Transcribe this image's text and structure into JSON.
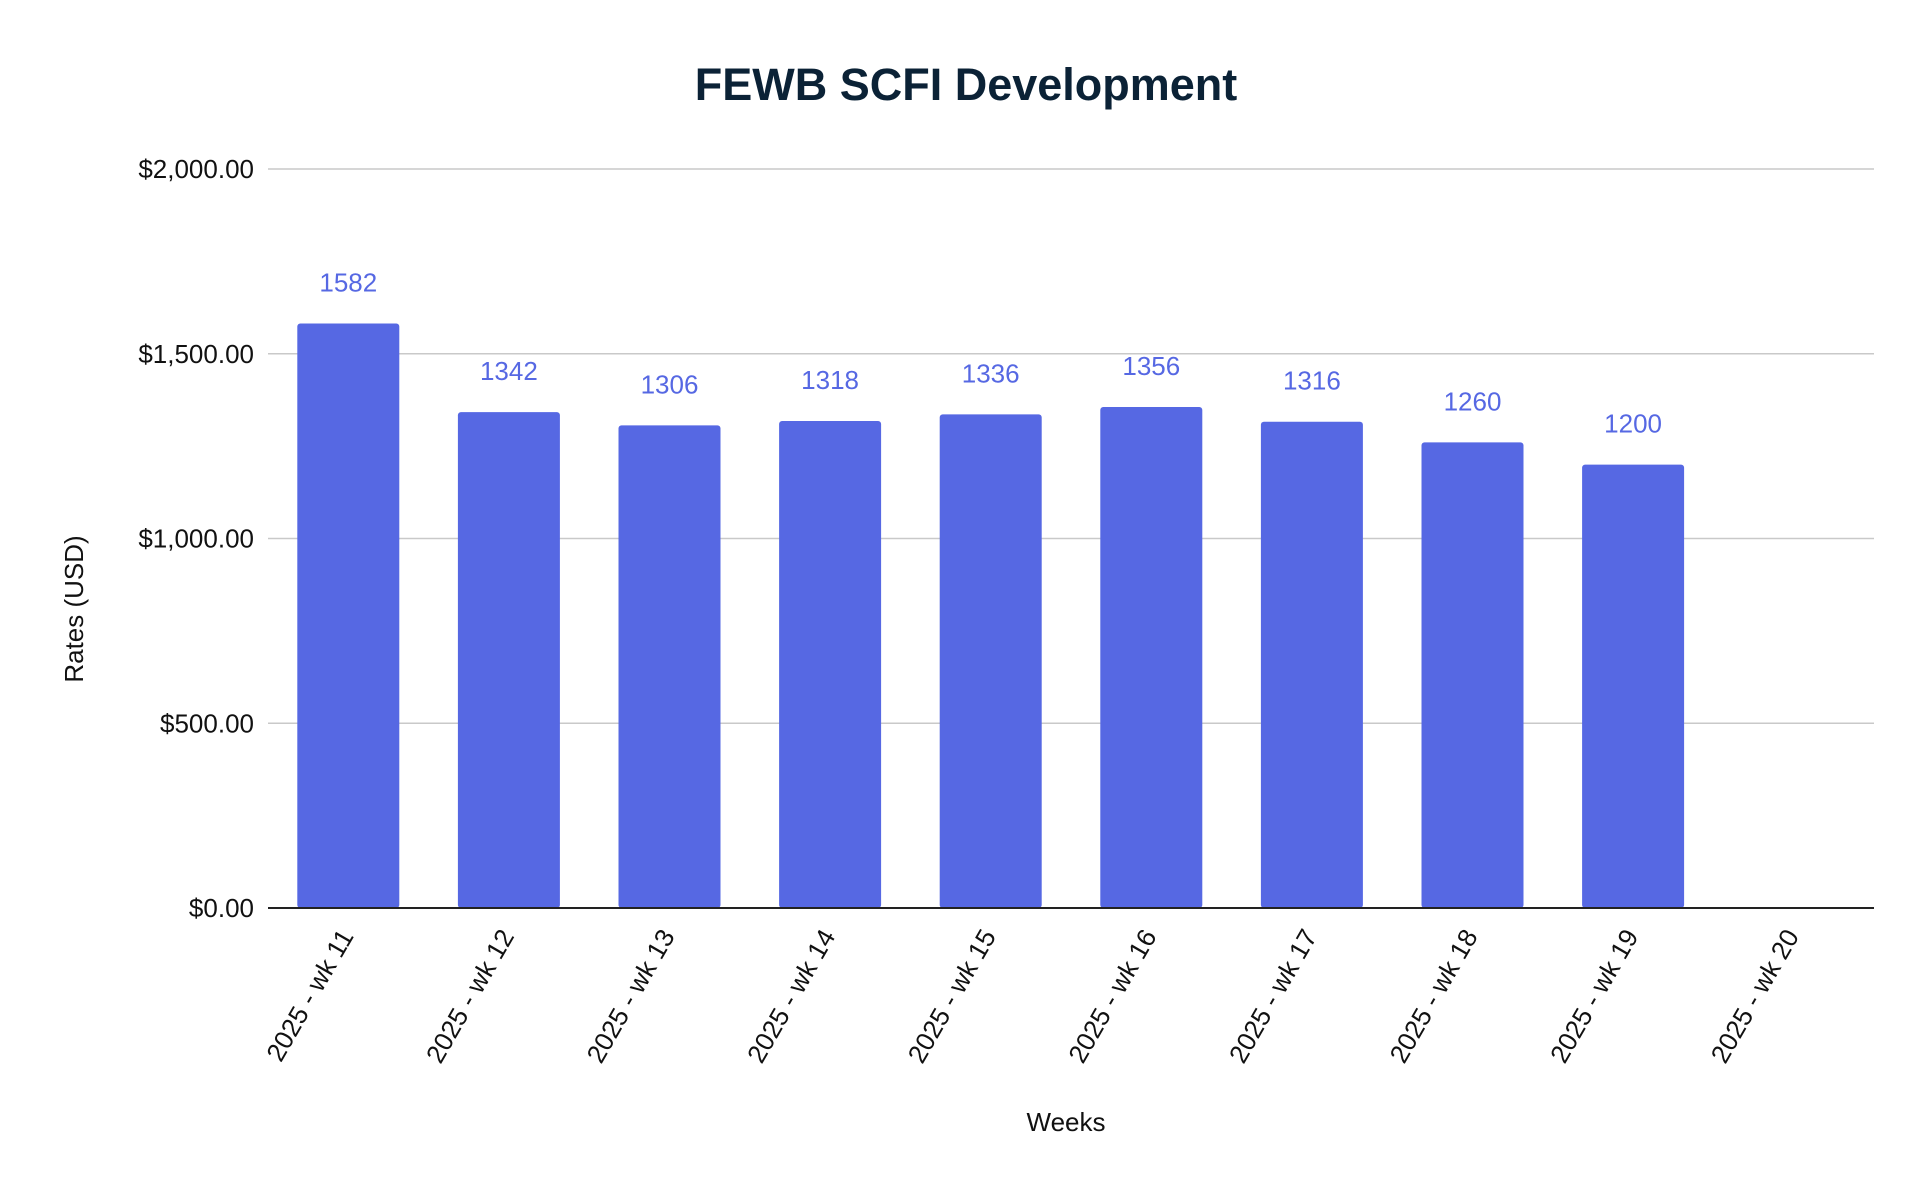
{
  "chart_data": {
    "type": "bar",
    "title": "FEWB SCFI Development",
    "xlabel": "Weeks",
    "ylabel": "Rates (USD)",
    "categories": [
      "2025 - wk 11",
      "2025 - wk 12",
      "2025 - wk 13",
      "2025 - wk 14",
      "2025 - wk 15",
      "2025 - wk 16",
      "2025 - wk 17",
      "2025 - wk 18",
      "2025 - wk 19",
      "2025 - wk 20"
    ],
    "values": [
      1582,
      1342,
      1306,
      1318,
      1336,
      1356,
      1316,
      1260,
      1200,
      null
    ],
    "data_labels": [
      "1582",
      "1342",
      "1306",
      "1318",
      "1336",
      "1356",
      "1316",
      "1260",
      "1200",
      ""
    ],
    "ylim": [
      0,
      2000
    ],
    "yticks": [
      0,
      500,
      1000,
      1500,
      2000
    ],
    "ytick_labels": [
      "$0.00",
      "$500.00",
      "$1,000.00",
      "$1,500.00",
      "$2,000.00"
    ],
    "grid": true,
    "legend": "none",
    "colors": {
      "bar": "#5668e3",
      "data_label": "#5668e3",
      "title": "#0b2236"
    }
  }
}
